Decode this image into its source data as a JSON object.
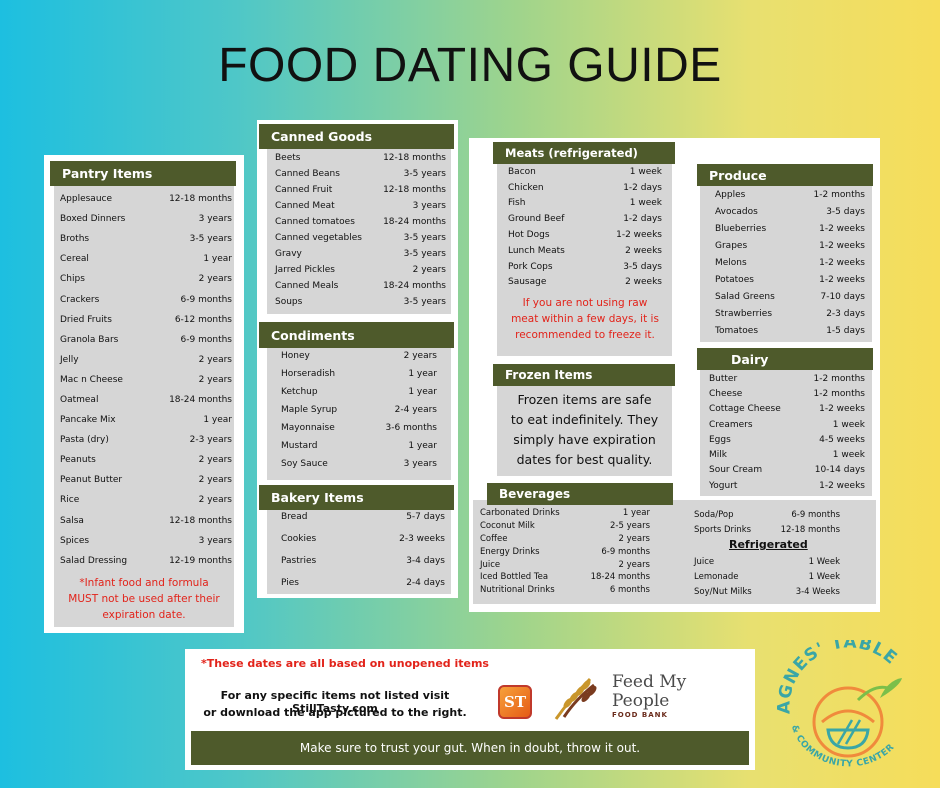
{
  "title": "FOOD DATING GUIDE",
  "pantry": {
    "header": "Pantry Items",
    "items": [
      {
        "name": "Applesauce",
        "time": "12-18 months"
      },
      {
        "name": "Boxed Dinners",
        "time": "3 years"
      },
      {
        "name": "Broths",
        "time": "3-5 years"
      },
      {
        "name": "Cereal",
        "time": "1 year"
      },
      {
        "name": "Chips",
        "time": "2 years"
      },
      {
        "name": "Crackers",
        "time": "6-9 months"
      },
      {
        "name": "Dried Fruits",
        "time": "6-12 months"
      },
      {
        "name": "Granola Bars",
        "time": "6-9 months"
      },
      {
        "name": "Jelly",
        "time": "2 years"
      },
      {
        "name": "Mac n Cheese",
        "time": "2 years"
      },
      {
        "name": "Oatmeal",
        "time": "18-24 months"
      },
      {
        "name": "Pancake Mix",
        "time": "1 year"
      },
      {
        "name": "Pasta (dry)",
        "time": "2-3 years"
      },
      {
        "name": "Peanuts",
        "time": "2 years"
      },
      {
        "name": "Peanut Butter",
        "time": "2 years"
      },
      {
        "name": "Rice",
        "time": "2 years"
      },
      {
        "name": "Salsa",
        "time": "12-18 months"
      },
      {
        "name": "Spices",
        "time": "3 years"
      },
      {
        "name": "Salad Dressing",
        "time": "12-19 months"
      }
    ],
    "note_line1": "*Infant food and formula",
    "note_line2": "MUST not be used after their",
    "note_line3": "expiration date."
  },
  "canned": {
    "header": "Canned Goods",
    "items": [
      {
        "name": "Beets",
        "time": "12-18 months"
      },
      {
        "name": "Canned Beans",
        "time": "3-5 years"
      },
      {
        "name": "Canned Fruit",
        "time": "12-18 months"
      },
      {
        "name": "Canned Meat",
        "time": "3 years"
      },
      {
        "name": "Canned tomatoes",
        "time": "18-24 months"
      },
      {
        "name": "Canned vegetables",
        "time": "3-5 years"
      },
      {
        "name": "Gravy",
        "time": "3-5 years"
      },
      {
        "name": "Jarred Pickles",
        "time": "2 years"
      },
      {
        "name": "Canned Meals",
        "time": "18-24 months"
      },
      {
        "name": "Soups",
        "time": "3-5 years"
      }
    ]
  },
  "condiments": {
    "header": "Condiments",
    "items": [
      {
        "name": "Honey",
        "time": "2 years"
      },
      {
        "name": "Horseradish",
        "time": "1 year"
      },
      {
        "name": "Ketchup",
        "time": "1 year"
      },
      {
        "name": "Maple Syrup",
        "time": "2-4 years"
      },
      {
        "name": "Mayonnaise",
        "time": "3-6 months"
      },
      {
        "name": "Mustard",
        "time": "1 year"
      },
      {
        "name": "Soy Sauce",
        "time": "3 years"
      }
    ]
  },
  "bakery": {
    "header": "Bakery Items",
    "items": [
      {
        "name": "Bread",
        "time": "5-7 days"
      },
      {
        "name": "Cookies",
        "time": "2-3 weeks"
      },
      {
        "name": "Pastries",
        "time": "3-4 days"
      },
      {
        "name": "Pies",
        "time": "2-4 days"
      }
    ]
  },
  "meats": {
    "header": "Meats (refrigerated)",
    "items": [
      {
        "name": "Bacon",
        "time": "1 week"
      },
      {
        "name": "Chicken",
        "time": "1-2 days"
      },
      {
        "name": "Fish",
        "time": "1 week"
      },
      {
        "name": "Ground Beef",
        "time": "1-2 days"
      },
      {
        "name": "Hot Dogs",
        "time": "1-2 weeks"
      },
      {
        "name": "Lunch Meats",
        "time": "2 weeks"
      },
      {
        "name": "Pork Cops",
        "time": "3-5 days"
      },
      {
        "name": "Sausage",
        "time": "2 weeks"
      }
    ],
    "note_line1": "If you are not using raw",
    "note_line2": "meat within a few days, it is",
    "note_line3": "recommended to freeze it."
  },
  "frozen": {
    "header": "Frozen Items",
    "line1": "Frozen items are safe",
    "line2": "to eat indefinitely. They",
    "line3": "simply have expiration",
    "line4": "dates for best quality."
  },
  "produce": {
    "header": "Produce",
    "items": [
      {
        "name": "Apples",
        "time": "1-2 months"
      },
      {
        "name": "Avocados",
        "time": "3-5 days"
      },
      {
        "name": "Blueberries",
        "time": "1-2 weeks"
      },
      {
        "name": "Grapes",
        "time": "1-2 weeks"
      },
      {
        "name": "Melons",
        "time": "1-2 weeks"
      },
      {
        "name": "Potatoes",
        "time": "1-2 weeks"
      },
      {
        "name": "Salad Greens",
        "time": "7-10 days"
      },
      {
        "name": "Strawberries",
        "time": "2-3 days"
      },
      {
        "name": "Tomatoes",
        "time": "1-5 days"
      }
    ]
  },
  "dairy": {
    "header": "Dairy",
    "items": [
      {
        "name": "Butter",
        "time": "1-2 months"
      },
      {
        "name": "Cheese",
        "time": "1-2 months"
      },
      {
        "name": "Cottage Cheese",
        "time": "1-2 weeks"
      },
      {
        "name": "Creamers",
        "time": "1 week"
      },
      {
        "name": "Eggs",
        "time": "4-5 weeks"
      },
      {
        "name": "Milk",
        "time": "1 week"
      },
      {
        "name": "Sour Cream",
        "time": "10-14 days"
      },
      {
        "name": "Yogurt",
        "time": "1-2 weeks"
      }
    ]
  },
  "beverages": {
    "header": "Beverages",
    "left_items": [
      {
        "name": "Carbonated Drinks",
        "time": "1 year"
      },
      {
        "name": "Coconut Milk",
        "time": "2-5 years"
      },
      {
        "name": "Coffee",
        "time": "2 years"
      },
      {
        "name": "Energy Drinks",
        "time": "6-9 months"
      },
      {
        "name": "Juice",
        "time": "2 years"
      },
      {
        "name": "Iced Bottled Tea",
        "time": "18-24 months"
      },
      {
        "name": "Nutritional Drinks",
        "time": "6 months"
      }
    ],
    "right_items": [
      {
        "name": "Soda/Pop",
        "time": "6-9 months"
      },
      {
        "name": "Sports Drinks",
        "time": "12-18 months"
      }
    ],
    "refrigerated_label": "Refrigerated",
    "refrigerated_items": [
      {
        "name": "Juice",
        "time": "1 Week"
      },
      {
        "name": "Lemonade",
        "time": "1 Week"
      },
      {
        "name": "Soy/Nut Milks",
        "time": "3-4 Weeks"
      }
    ]
  },
  "footer": {
    "note": "*These dates are all based on unopened items",
    "line1": "For any specific items not listed visit StillTasty.com",
    "line2": "or download the app pictured to the right.",
    "app_icon_text": "ST",
    "fmp_line1": "Feed My",
    "fmp_line2": "People",
    "fmp_sub": "FOOD BANK",
    "bar": "Make sure to trust your gut. When in doubt, throw it out."
  },
  "logo": {
    "top": "AGNES' TABLE",
    "bottom": "& COMMUNITY CENTER",
    "colors": {
      "orange": "#f08a3c",
      "green": "#7bbf4a",
      "teal": "#3aa6a6"
    }
  }
}
